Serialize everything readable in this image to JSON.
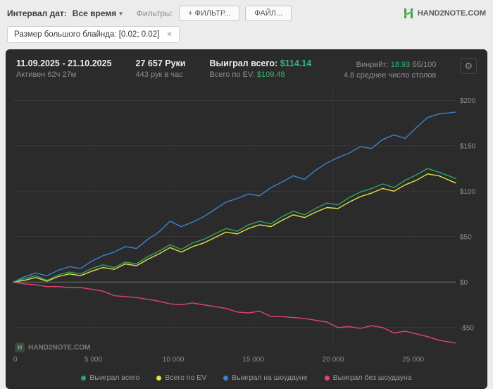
{
  "toolbar": {
    "date_label": "Интервал дат:",
    "date_value": "Все время",
    "filters_label": "Фильтры:",
    "filter_button": "+ ФИЛЬТР...",
    "file_button": "ФАЙЛ...",
    "brand": "HAND2NOTE.COM"
  },
  "filter_chip": {
    "label": "Размер большого блайнда: [0.02; 0.02]",
    "close": "✕"
  },
  "header": {
    "date_range": "11.09.2025 - 21.10.2025",
    "active": "Активен 62ч 27м",
    "hands": "27 657 Руки",
    "hands_rate": "443 рук в час",
    "won_label": "Выиграл всего:",
    "won_value": "$114.14",
    "ev_label": "Всего по EV:",
    "ev_value": "$109.48",
    "winrate_label": "Винрейт:",
    "winrate_value": "18.93",
    "winrate_unit": "бб/100",
    "tables": "4.8 среднее число столов"
  },
  "watermark": "HAND2NOTE.COM",
  "colors": {
    "accent_green": "#33b573"
  },
  "chart_data": {
    "type": "line",
    "title": "",
    "xlabel": "",
    "ylabel": "",
    "xlim": [
      0,
      27657
    ],
    "ylim": [
      -75,
      215
    ],
    "x_ticks": [
      0,
      5000,
      10000,
      15000,
      20000,
      25000
    ],
    "x_tick_labels": [
      "0",
      "5 000",
      "10 000",
      "15 000",
      "20 000",
      "25 000"
    ],
    "y_ticks": [
      -50,
      0,
      50,
      100,
      150,
      200
    ],
    "y_tick_labels": [
      "-$50",
      "$0",
      "$50",
      "$100",
      "$150",
      "$200"
    ],
    "legend_position": "bottom",
    "x": [
      0,
      700,
      1400,
      2100,
      2800,
      3500,
      4200,
      4900,
      5600,
      6300,
      7000,
      7700,
      8400,
      9100,
      9800,
      10500,
      11200,
      11900,
      12600,
      13300,
      14000,
      14700,
      15400,
      16100,
      16800,
      17500,
      18200,
      18900,
      19600,
      20300,
      21000,
      21700,
      22400,
      23100,
      23800,
      24500,
      25200,
      25900,
      26600,
      27657
    ],
    "series": [
      {
        "name": "Выиграл всего",
        "color": "#2fa463",
        "values": [
          0,
          4,
          7,
          2,
          8,
          11,
          9,
          15,
          19,
          16,
          22,
          20,
          28,
          34,
          41,
          36,
          43,
          47,
          53,
          59,
          56,
          63,
          67,
          64,
          72,
          78,
          74,
          81,
          87,
          85,
          93,
          99,
          103,
          108,
          104,
          112,
          118,
          125,
          121,
          114
        ]
      },
      {
        "name": "Всего по EV",
        "color": "#e7e041",
        "values": [
          0,
          2,
          5,
          1,
          6,
          9,
          7,
          12,
          16,
          14,
          20,
          18,
          25,
          31,
          38,
          33,
          39,
          43,
          49,
          55,
          53,
          59,
          63,
          61,
          68,
          74,
          71,
          77,
          82,
          81,
          88,
          94,
          98,
          103,
          100,
          107,
          112,
          119,
          117,
          109
        ]
      },
      {
        "name": "Выиграл на шоудауне",
        "color": "#3b82d0",
        "values": [
          0,
          6,
          10,
          7,
          13,
          17,
          15,
          23,
          29,
          33,
          39,
          37,
          47,
          55,
          67,
          61,
          66,
          72,
          80,
          88,
          92,
          97,
          95,
          104,
          110,
          117,
          113,
          123,
          131,
          137,
          142,
          149,
          147,
          157,
          162,
          158,
          170,
          181,
          185,
          187
        ]
      },
      {
        "name": "Выиграл без шоудауна",
        "color": "#e0436e",
        "values": [
          0,
          -2,
          -3,
          -5,
          -5,
          -6,
          -6,
          -8,
          -10,
          -15,
          -16,
          -17,
          -19,
          -21,
          -24,
          -25,
          -23,
          -25,
          -27,
          -29,
          -33,
          -34,
          -32,
          -38,
          -38,
          -39,
          -40,
          -42,
          -44,
          -50,
          -49,
          -51,
          -48,
          -50,
          -56,
          -54,
          -57,
          -60,
          -64,
          -67
        ]
      }
    ]
  }
}
